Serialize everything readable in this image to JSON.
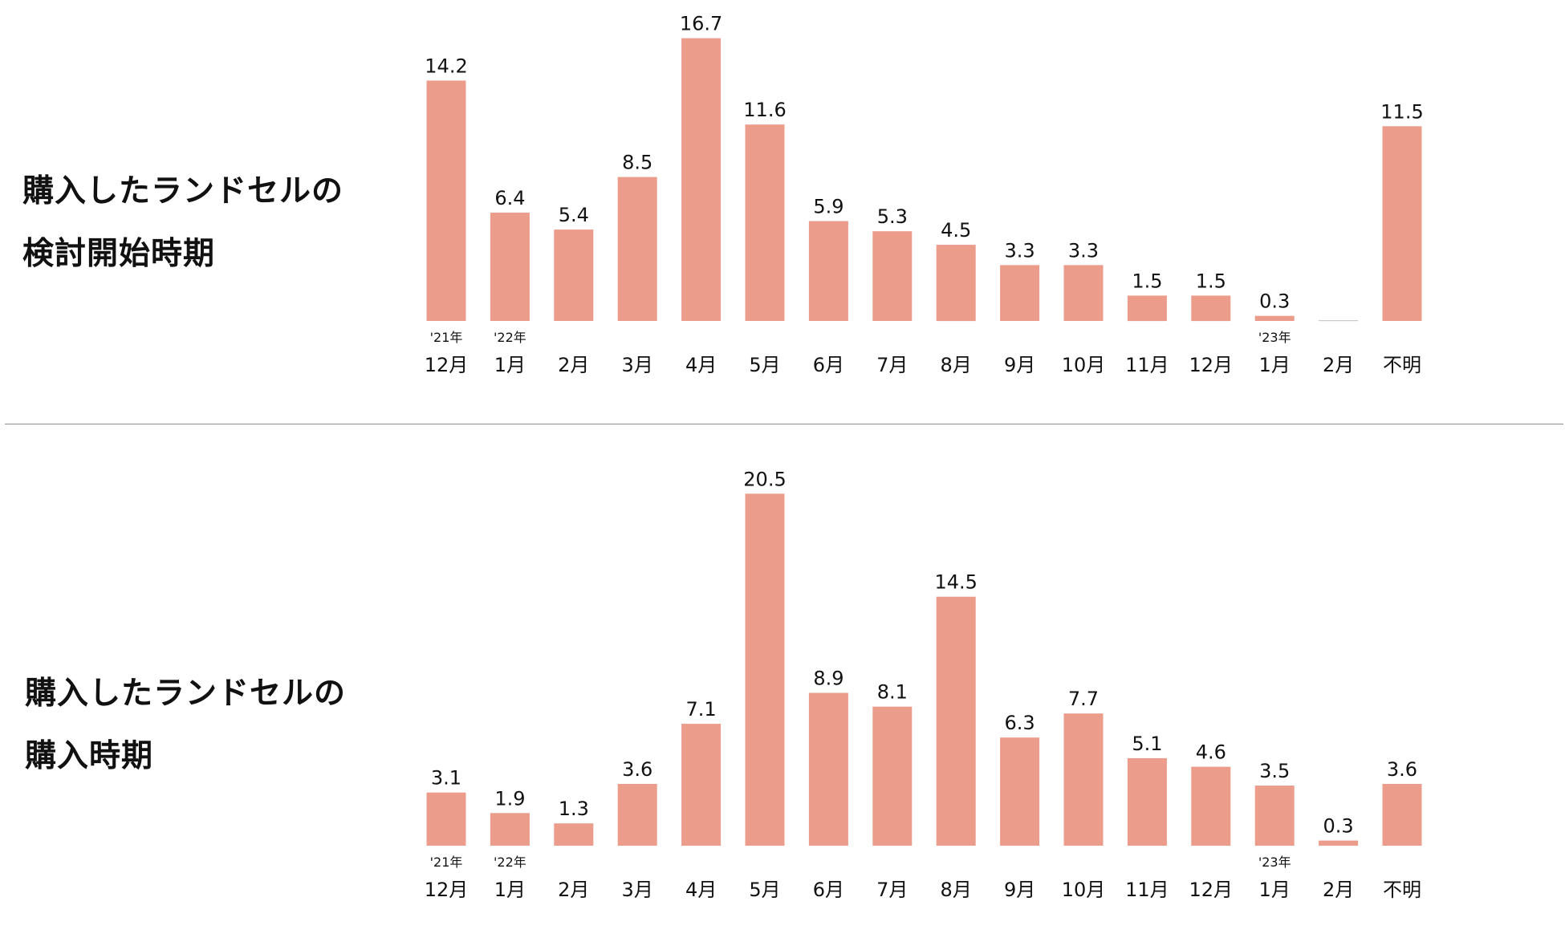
{
  "colors": {
    "bar": "#eb9c8b",
    "zero_bar": "#c9c9c9",
    "text": "#111111",
    "divider": "#8c8c8c"
  },
  "panels": [
    {
      "title_lines": [
        "購入したランドセルの",
        "検討開始時期"
      ]
    },
    {
      "title_lines": [
        "購入したランドセルの",
        "購入時期"
      ]
    }
  ],
  "chart_data": [
    {
      "type": "bar",
      "categories": [
        "12月",
        "1月",
        "2月",
        "3月",
        "4月",
        "5月",
        "6月",
        "7月",
        "8月",
        "9月",
        "10月",
        "11月",
        "12月",
        "1月",
        "2月",
        "不明"
      ],
      "year_labels": [
        "'21年",
        "'22年",
        "",
        "",
        "",
        "",
        "",
        "",
        "",
        "",
        "",
        "",
        "",
        "'23年",
        "",
        ""
      ],
      "values": [
        14.2,
        6.4,
        5.4,
        8.5,
        16.7,
        11.6,
        5.9,
        5.3,
        4.5,
        3.3,
        3.3,
        1.5,
        1.5,
        0.3,
        0,
        11.5
      ],
      "value_labels": [
        "14.2",
        "6.4",
        "5.4",
        "8.5",
        "16.7",
        "11.6",
        "5.9",
        "5.3",
        "4.5",
        "3.3",
        "3.3",
        "1.5",
        "1.5",
        "0.3",
        "",
        "11.5"
      ],
      "title": "",
      "xlabel": "",
      "ylabel": "",
      "grid": false,
      "legend": "none"
    },
    {
      "type": "bar",
      "categories": [
        "12月",
        "1月",
        "2月",
        "3月",
        "4月",
        "5月",
        "6月",
        "7月",
        "8月",
        "9月",
        "10月",
        "11月",
        "12月",
        "1月",
        "2月",
        "不明"
      ],
      "year_labels": [
        "'21年",
        "'22年",
        "",
        "",
        "",
        "",
        "",
        "",
        "",
        "",
        "",
        "",
        "",
        "'23年",
        "",
        ""
      ],
      "values": [
        3.1,
        1.9,
        1.3,
        3.6,
        7.1,
        20.5,
        8.9,
        8.1,
        14.5,
        6.3,
        7.7,
        5.1,
        4.6,
        3.5,
        0.3,
        3.6
      ],
      "value_labels": [
        "3.1",
        "1.9",
        "1.3",
        "3.6",
        "7.1",
        "20.5",
        "8.9",
        "8.1",
        "14.5",
        "6.3",
        "7.7",
        "5.1",
        "4.6",
        "3.5",
        "0.3",
        "3.6"
      ],
      "title": "",
      "xlabel": "",
      "ylabel": "",
      "grid": false,
      "legend": "none"
    }
  ]
}
